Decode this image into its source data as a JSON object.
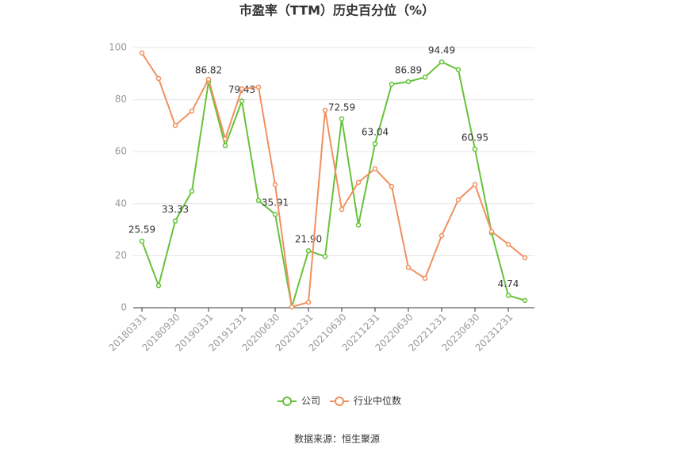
{
  "chart_data": {
    "type": "line",
    "title": "市盈率（TTM）历史百分位（%）",
    "source": "数据来源：恒生聚源",
    "categories": [
      "20180331",
      null,
      "20180930",
      null,
      "20190331",
      null,
      "20191231",
      null,
      "20200630",
      null,
      "20201231",
      null,
      "20210630",
      null,
      "20211231",
      null,
      "20220630",
      null,
      "20221231",
      null,
      "20230630",
      null,
      "20231231",
      null
    ],
    "series": [
      {
        "name": "公司",
        "color": "#66c23a",
        "values": [
          25.59,
          8.5,
          33.33,
          44.8,
          86.82,
          62.3,
          79.43,
          41.2,
          35.91,
          0.3,
          21.9,
          19.7,
          72.59,
          31.8,
          63.04,
          85.9,
          86.89,
          88.6,
          94.49,
          91.5,
          60.95,
          28.8,
          4.74,
          2.8
        ],
        "value_labels": [
          "25.59",
          null,
          "33.33",
          null,
          "86.82",
          null,
          "79.43",
          null,
          "35.91",
          null,
          "21.90",
          null,
          "72.59",
          null,
          "63.04",
          null,
          "86.89",
          null,
          "94.49",
          null,
          "60.95",
          null,
          "4.74",
          null
        ]
      },
      {
        "name": "行业中位数",
        "color": "#f0905f",
        "values": [
          97.9,
          88.1,
          70.1,
          75.6,
          87.8,
          64.9,
          84.1,
          84.8,
          47.3,
          0.3,
          2.1,
          75.9,
          37.8,
          48.2,
          53.4,
          46.6,
          15.5,
          11.3,
          27.7,
          41.5,
          47.3,
          29.3,
          24.4,
          19.2
        ]
      }
    ],
    "ylim": [
      0,
      100
    ],
    "yticks": [
      0,
      20,
      40,
      60,
      80,
      100
    ],
    "grid": true
  }
}
